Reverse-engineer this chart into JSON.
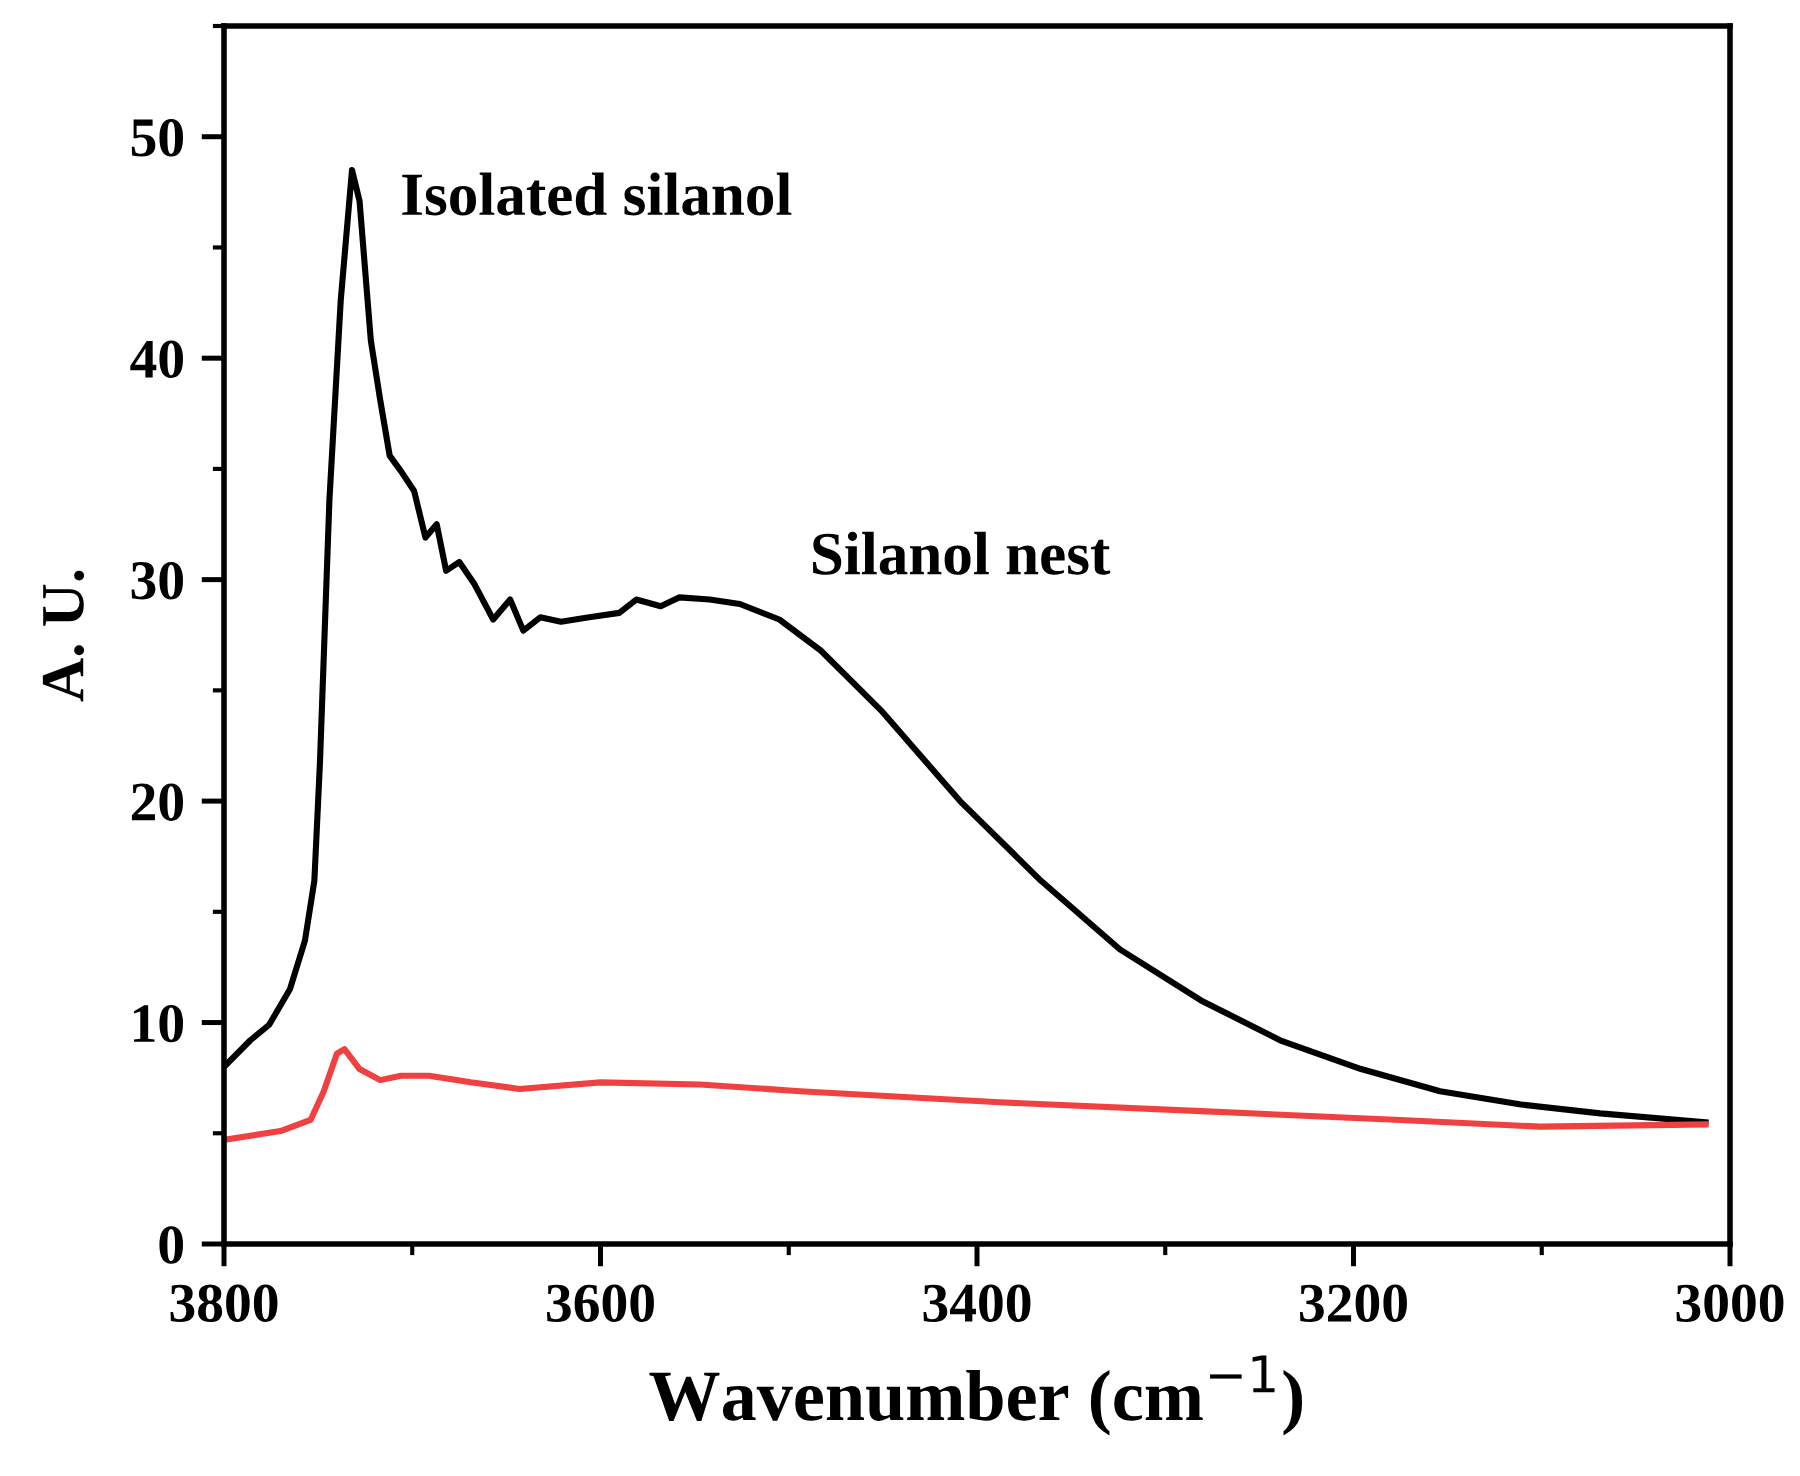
{
  "chart_data": {
    "type": "line",
    "xlabel": "Wavenumber (cm$^{−1}$)",
    "ylabel": "A. U.",
    "xlim": [
      3800,
      3000
    ],
    "xticks": [
      3800,
      3600,
      3400,
      3200,
      3000
    ],
    "ylim": [
      0,
      55
    ],
    "yticks": [
      0,
      10,
      20,
      30,
      40,
      50
    ],
    "grid": false,
    "legend": false,
    "marker": "none",
    "line_style": "solid",
    "annotations": [
      "Isolated silanol",
      "Silanol nest"
    ],
    "series": [
      {
        "color": "#000000",
        "x": [
          3800,
          3786,
          3776,
          3765,
          3757,
          3752,
          3749,
          3744,
          3738,
          3732,
          3728,
          3722,
          3717,
          3712,
          3706,
          3699,
          3693,
          3687,
          3682,
          3675,
          3667,
          3657,
          3648,
          3641,
          3632,
          3621,
          3606,
          3590,
          3581,
          3568,
          3558,
          3542,
          3526,
          3505,
          3483,
          3451,
          3409,
          3366,
          3324,
          3281,
          3239,
          3196,
          3154,
          3111,
          3069,
          3013
        ],
        "values": [
          8.0,
          9.2,
          9.9,
          11.5,
          13.7,
          16.4,
          21.8,
          33.6,
          42.6,
          48.5,
          47.1,
          40.8,
          38.1,
          35.6,
          34.9,
          34.0,
          31.9,
          32.5,
          30.4,
          30.8,
          29.8,
          28.2,
          29.1,
          27.7,
          28.3,
          28.1,
          28.3,
          28.5,
          29.1,
          28.8,
          29.2,
          29.1,
          28.9,
          28.2,
          26.8,
          24.1,
          20.0,
          16.4,
          13.3,
          11.0,
          9.2,
          7.9,
          6.9,
          6.3,
          5.9,
          5.5
        ]
      },
      {
        "color": "#f04040",
        "x": [
          3800,
          3770,
          3754,
          3747,
          3740,
          3736,
          3728,
          3717,
          3706,
          3691,
          3669,
          3643,
          3600,
          3547,
          3494,
          3388,
          3281,
          3175,
          3101,
          3013
        ],
        "values": [
          4.7,
          5.1,
          5.6,
          6.9,
          8.6,
          8.8,
          7.9,
          7.4,
          7.6,
          7.6,
          7.3,
          7.0,
          7.3,
          7.2,
          6.9,
          6.4,
          6.0,
          5.6,
          5.3,
          5.4
        ]
      }
    ]
  }
}
